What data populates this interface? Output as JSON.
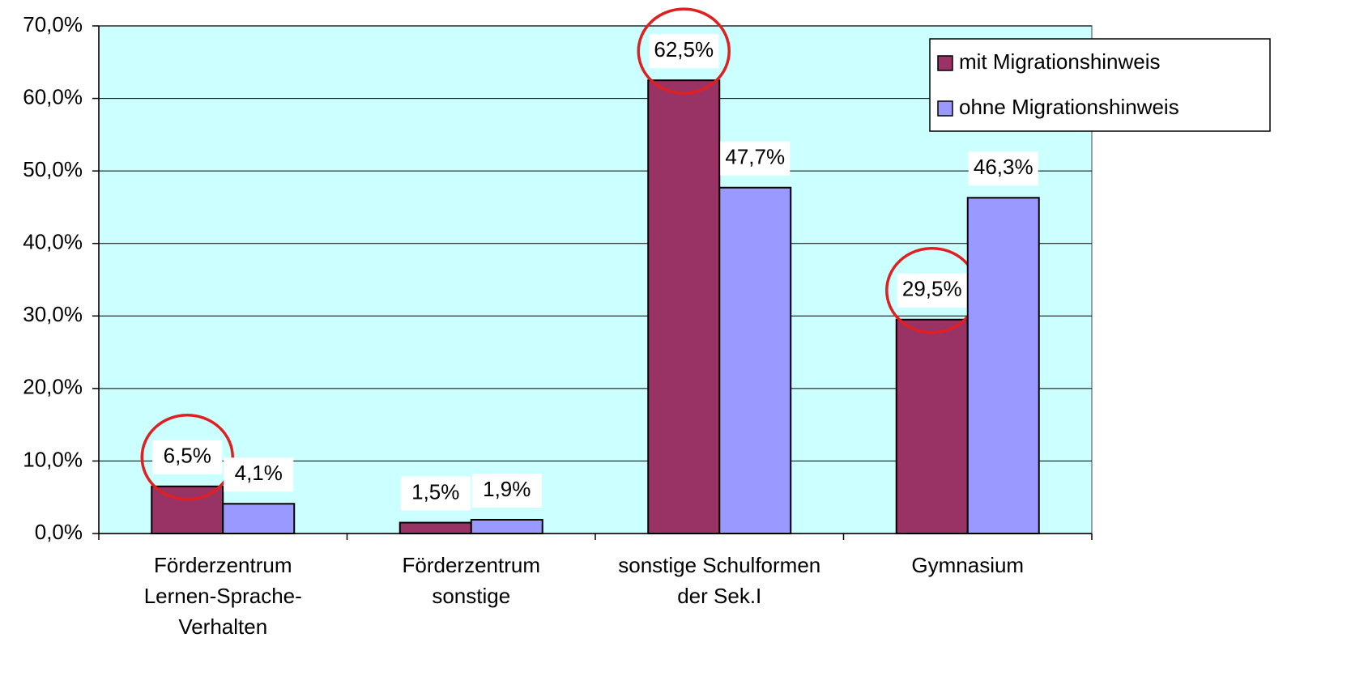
{
  "chart_data": {
    "type": "bar",
    "categories": [
      [
        "Förderzentrum",
        "Lernen-Sprache-",
        "Verhalten"
      ],
      [
        "Förderzentrum",
        "sonstige"
      ],
      [
        "sonstige Schulformen",
        "der Sek.I"
      ],
      [
        "Gymnasium"
      ]
    ],
    "series": [
      {
        "name": "mit Migrationshinweis",
        "color": "#993366",
        "values": [
          6.5,
          1.5,
          62.5,
          29.5
        ],
        "value_labels": [
          "6,5%",
          "1,5%",
          "62,5%",
          "29,5%"
        ],
        "highlight": [
          true,
          false,
          true,
          true
        ]
      },
      {
        "name": "ohne Migrationshinweis",
        "color": "#9999ff",
        "values": [
          4.1,
          1.9,
          47.7,
          46.3
        ],
        "value_labels": [
          "4,1%",
          "1,9%",
          "47,7%",
          "46,3%"
        ],
        "highlight": [
          false,
          false,
          false,
          false
        ]
      }
    ],
    "ylim": [
      0,
      70
    ],
    "yticks": [
      {
        "value": 0,
        "label": "0,0%"
      },
      {
        "value": 10,
        "label": "10,0%"
      },
      {
        "value": 20,
        "label": "20,0%"
      },
      {
        "value": 30,
        "label": "30,0%"
      },
      {
        "value": 40,
        "label": "40,0%"
      },
      {
        "value": 50,
        "label": "50,0%"
      },
      {
        "value": 60,
        "label": "60,0%"
      },
      {
        "value": 70,
        "label": "70,0%"
      }
    ],
    "grid": true,
    "plot_background": "#ccffff",
    "highlight_color": "#e02020",
    "legend": "top-right"
  }
}
